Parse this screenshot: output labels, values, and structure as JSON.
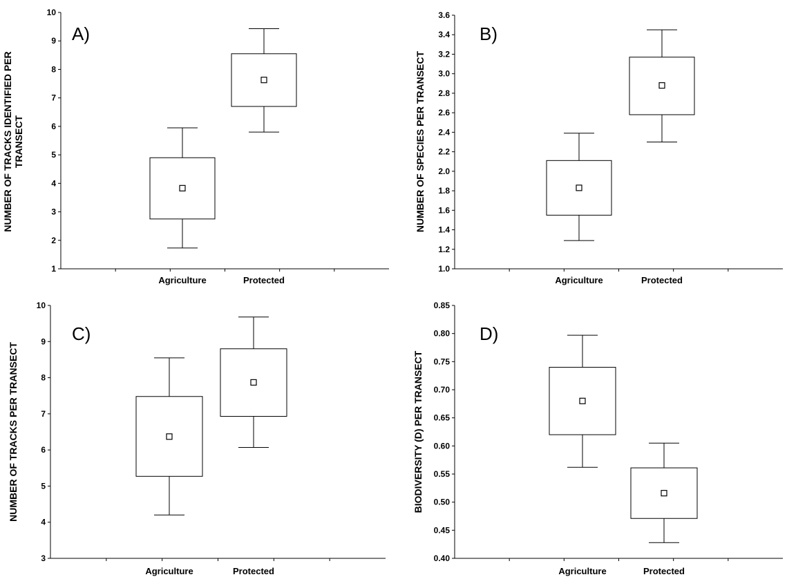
{
  "chart_data": [
    {
      "type": "box",
      "panel_label": "A)",
      "ylabel_lines": [
        "NUMBER OF TRACKS IDENTIFIED PER",
        "TRANSECT"
      ],
      "categories": [
        "Agriculture",
        "Protected"
      ],
      "ylim": [
        1,
        10
      ],
      "yticks": [
        "1",
        "2",
        "3",
        "4",
        "5",
        "6",
        "7",
        "8",
        "9",
        "10"
      ],
      "boxes": [
        {
          "category": "Agriculture",
          "whisker_low": 1.73,
          "q1": 2.75,
          "mean": 3.83,
          "q3": 4.9,
          "whisker_high": 5.95
        },
        {
          "category": "Protected",
          "whisker_low": 5.8,
          "q1": 6.7,
          "mean": 7.63,
          "q3": 8.55,
          "whisker_high": 9.43
        }
      ]
    },
    {
      "type": "box",
      "panel_label": "B)",
      "ylabel_lines": [
        "NUMBER OF SPECIES PER TRANSECT"
      ],
      "categories": [
        "Agriculture",
        "Protected"
      ],
      "ylim": [
        1.0,
        3.6
      ],
      "yticks": [
        "1.0",
        "1.2",
        "1.4",
        "1.6",
        "1.8",
        "2.0",
        "2.2",
        "2.4",
        "2.6",
        "2.8",
        "3.0",
        "3.2",
        "3.4",
        "3.6"
      ],
      "boxes": [
        {
          "category": "Agriculture",
          "whisker_low": 1.29,
          "q1": 1.55,
          "mean": 1.83,
          "q3": 2.11,
          "whisker_high": 2.39
        },
        {
          "category": "Protected",
          "whisker_low": 2.3,
          "q1": 2.58,
          "mean": 2.88,
          "q3": 3.17,
          "whisker_high": 3.45
        }
      ]
    },
    {
      "type": "box",
      "panel_label": "C)",
      "ylabel_lines": [
        "NUMBER OF TRACKS PER TRANSECT"
      ],
      "categories": [
        "Agriculture",
        "Protected"
      ],
      "ylim": [
        3,
        10
      ],
      "yticks": [
        "3",
        "4",
        "5",
        "6",
        "7",
        "8",
        "9",
        "10"
      ],
      "boxes": [
        {
          "category": "Agriculture",
          "whisker_low": 4.2,
          "q1": 5.27,
          "mean": 6.37,
          "q3": 7.48,
          "whisker_high": 8.55
        },
        {
          "category": "Protected",
          "whisker_low": 6.07,
          "q1": 6.93,
          "mean": 7.87,
          "q3": 8.8,
          "whisker_high": 9.68
        }
      ]
    },
    {
      "type": "box",
      "panel_label": "D)",
      "ylabel_lines": [
        "BIODIVERSITY (D) PER TRANSECT"
      ],
      "categories": [
        "Agriculture",
        "Protected"
      ],
      "ylim": [
        0.4,
        0.85
      ],
      "yticks": [
        "0.40",
        "0.45",
        "0.50",
        "0.55",
        "0.60",
        "0.65",
        "0.70",
        "0.75",
        "0.80",
        "0.85"
      ],
      "boxes": [
        {
          "category": "Agriculture",
          "whisker_low": 0.562,
          "q1": 0.62,
          "mean": 0.68,
          "q3": 0.74,
          "whisker_high": 0.797
        },
        {
          "category": "Protected",
          "whisker_low": 0.428,
          "q1": 0.471,
          "mean": 0.516,
          "q3": 0.561,
          "whisker_high": 0.605
        }
      ]
    }
  ]
}
